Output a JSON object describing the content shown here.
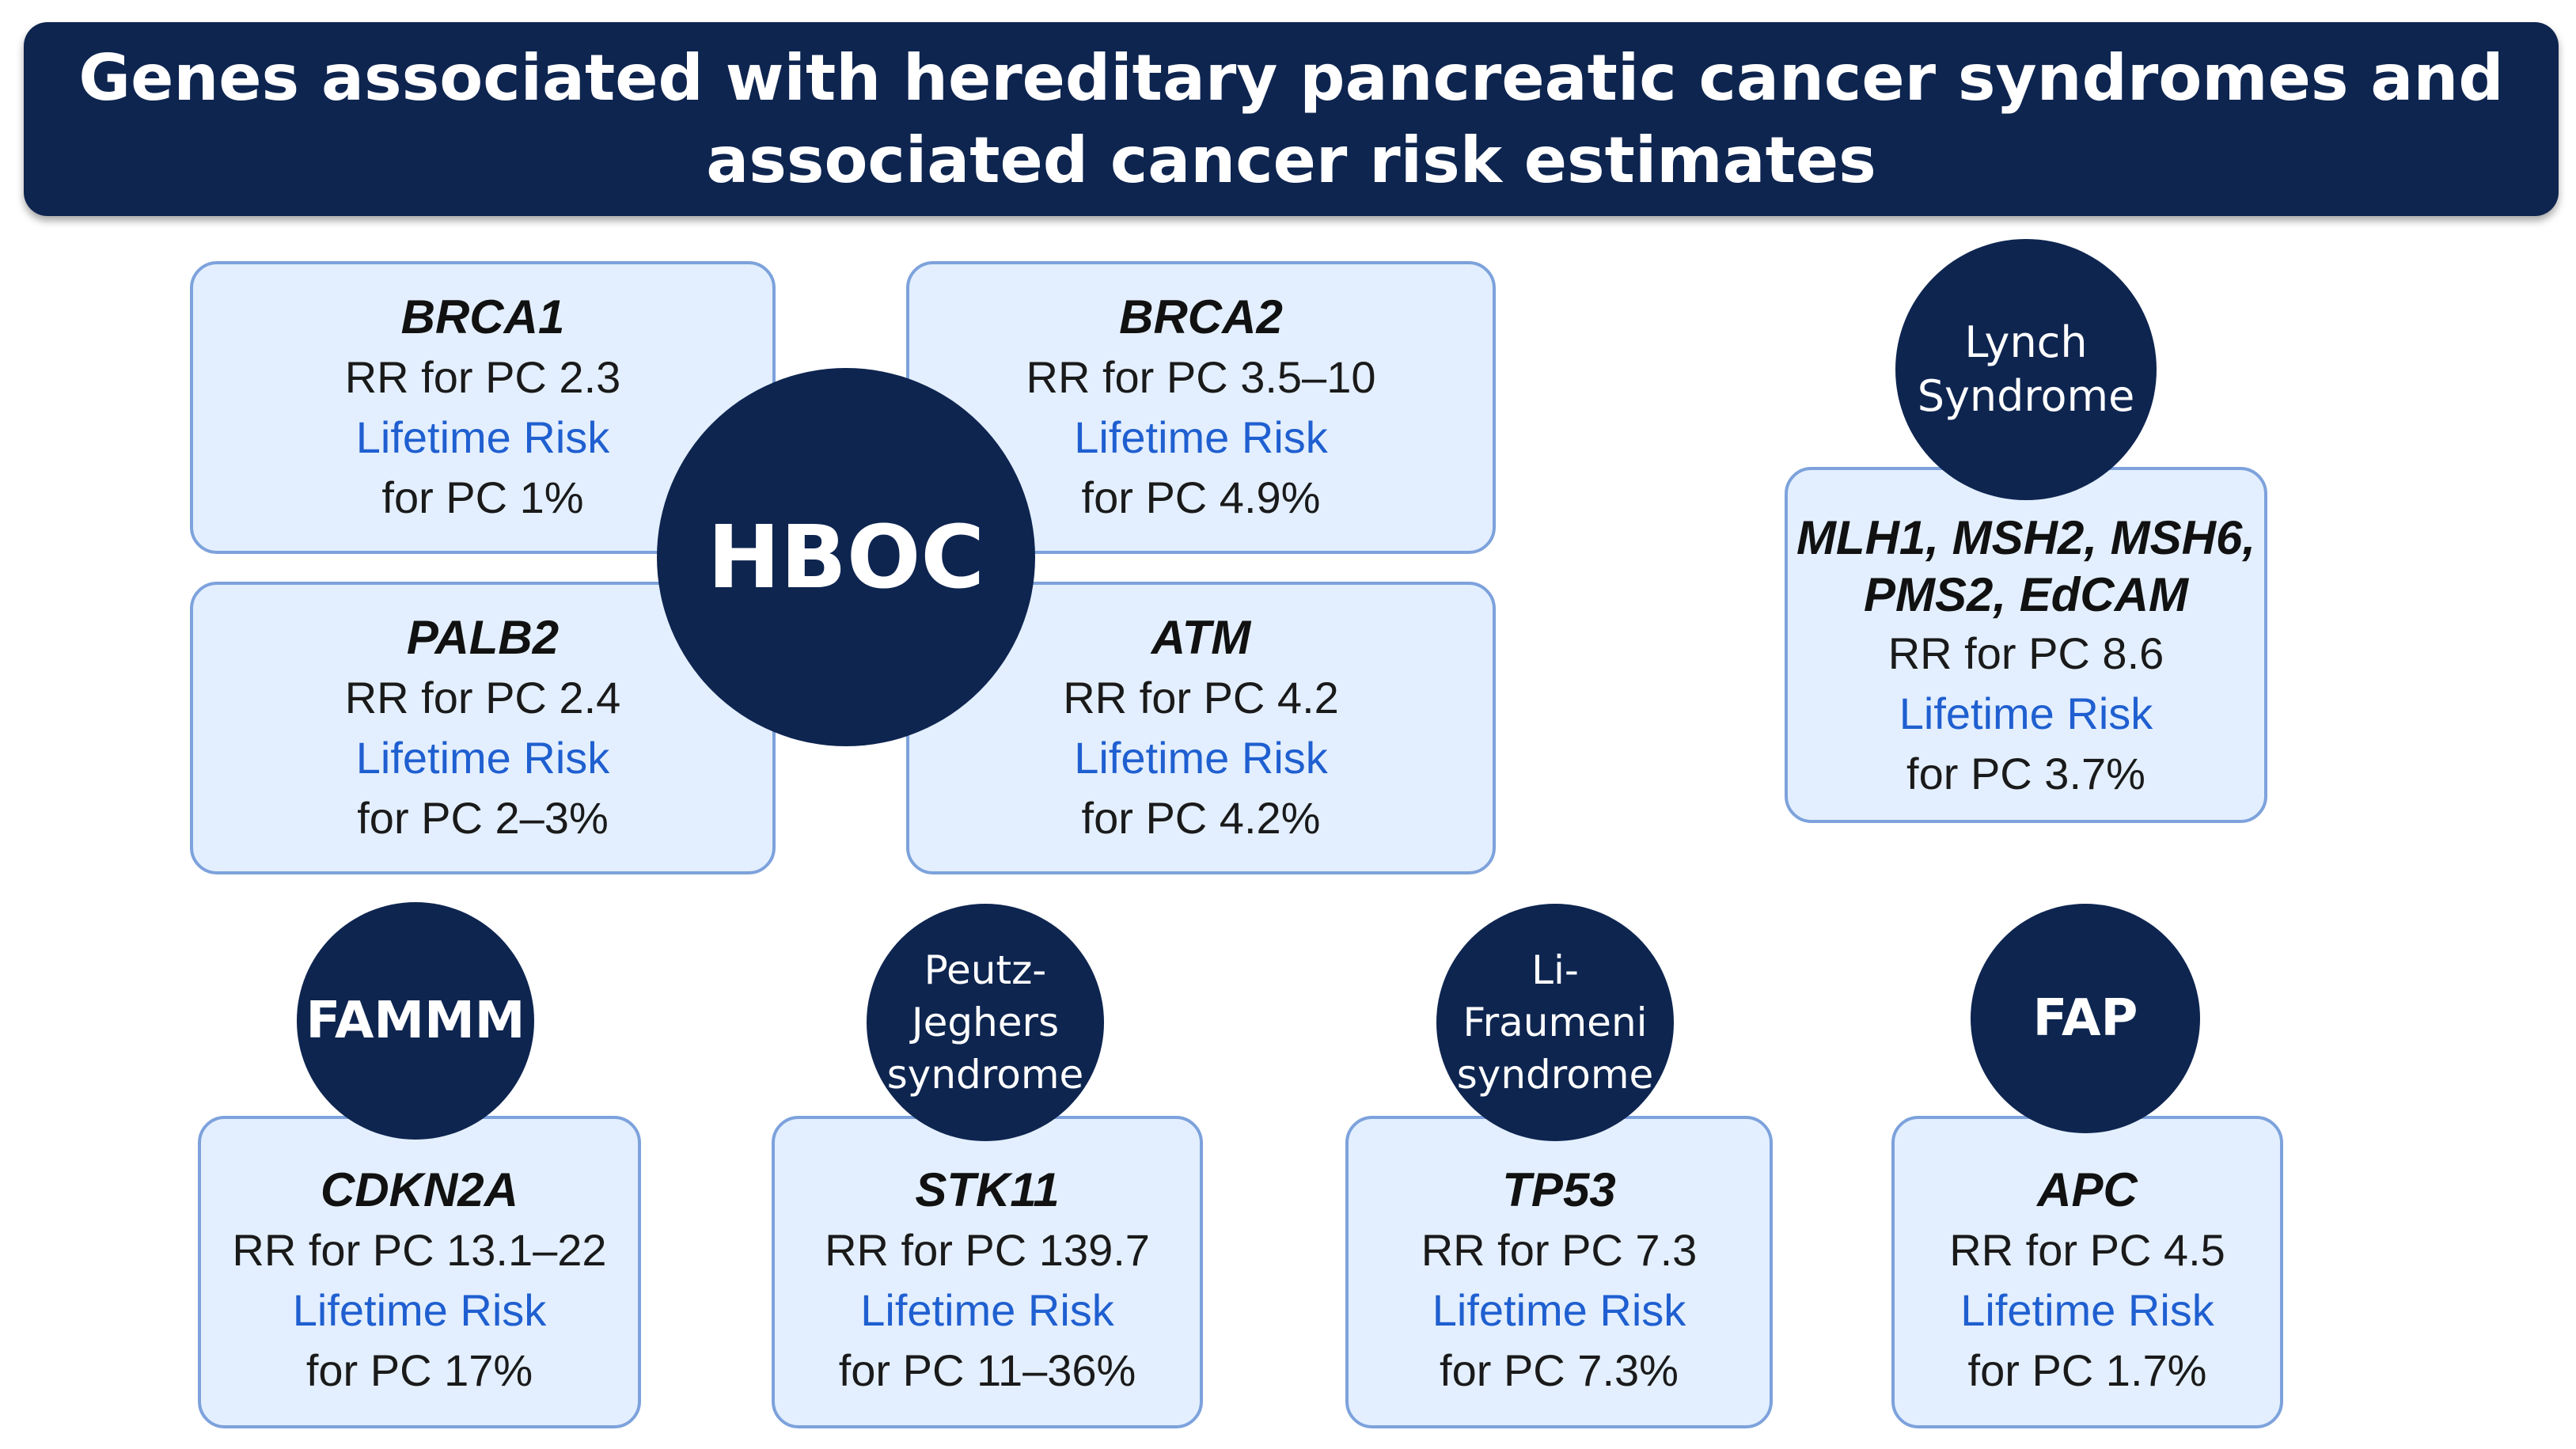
{
  "header": {
    "title_line1": "Genes associated with hereditary pancreatic cancer syndromes and",
    "title_line2": "associated cancer risk estimates"
  },
  "syndromes": {
    "hboc": "HBOC",
    "lynch": [
      "Lynch",
      "Syndrome"
    ],
    "fammm": "FAMMM",
    "peutz": [
      "Peutz-",
      "Jeghers",
      "syndrome"
    ],
    "li": [
      "Li-",
      "Fraumeni",
      "syndrome"
    ],
    "fap": "FAP"
  },
  "genes": {
    "brca1": {
      "name": "BRCA1",
      "rr": "RR for PC 2.3",
      "lt_label": "Lifetime Risk",
      "lt": "for PC 1%"
    },
    "brca2": {
      "name": "BRCA2",
      "rr": "RR for PC 3.5–10",
      "lt_label": "Lifetime Risk",
      "lt": "for PC 4.9%"
    },
    "palb2": {
      "name": "PALB2",
      "rr": "RR for PC 2.4",
      "lt_label": "Lifetime Risk",
      "lt": "for PC 2–3%"
    },
    "atm": {
      "name": "ATM",
      "rr": "RR for PC 4.2",
      "lt_label": "Lifetime Risk",
      "lt": "for PC 4.2%"
    },
    "lynch": {
      "name_line1": "MLH1, MSH2, MSH6,",
      "name_line2": "PMS2, EdCAM",
      "rr": "RR for PC 8.6",
      "lt_label": "Lifetime Risk",
      "lt": "for PC 3.7%"
    },
    "cdkn2a": {
      "name": "CDKN2A",
      "rr": "RR for PC 13.1–22",
      "lt_label": "Lifetime Risk",
      "lt": "for PC 17%"
    },
    "stk11": {
      "name": "STK11",
      "rr": "RR for PC 139.7",
      "lt_label": "Lifetime Risk",
      "lt": "for PC 11–36%"
    },
    "tp53": {
      "name": "TP53",
      "rr": "RR for PC 7.3",
      "lt_label": "Lifetime Risk",
      "lt": "for PC 7.3%"
    },
    "apc": {
      "name": "APC",
      "rr": "RR for PC 4.5",
      "lt_label": "Lifetime Risk",
      "lt": "for PC 1.7%"
    }
  },
  "colors": {
    "navy": "#0e2550",
    "box_fill": "#e3efff",
    "box_border": "#7da2dc",
    "lifetime_blue": "#1f5fd0"
  }
}
